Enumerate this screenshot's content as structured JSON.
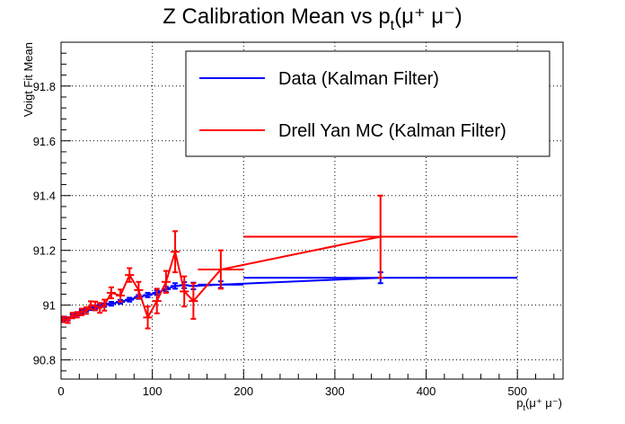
{
  "chart_data": {
    "type": "line",
    "title": {
      "main": "Z Calibration Mean vs  p",
      "sub": "t",
      "tail": "(μ⁺ μ⁻)"
    },
    "xlabel": {
      "main": "p",
      "sub": "t",
      "tail": "(μ⁺ μ⁻)"
    },
    "ylabel": "Voigt Fit Mean",
    "xlim": [
      0,
      550
    ],
    "ylim": [
      90.73,
      91.96
    ],
    "xticks": [
      0,
      100,
      200,
      300,
      400,
      500
    ],
    "xtick_labels": [
      "0",
      "100",
      "200",
      "300",
      "400",
      "500"
    ],
    "yticks": [
      90.8,
      91,
      91.2,
      91.4,
      91.6,
      91.8
    ],
    "ytick_labels": [
      "90.8",
      "91",
      "91.2",
      "91.4",
      "91.6",
      "91.8"
    ],
    "grid": true,
    "legend_position": "top-right",
    "series": [
      {
        "name": "Data (Kalman Filter)",
        "color": "#0000ff",
        "points": [
          {
            "x": 2.5,
            "y": 90.947,
            "xerr": 2.5,
            "yerr": 0.006
          },
          {
            "x": 7.5,
            "y": 90.95,
            "xerr": 2.5,
            "yerr": 0.006
          },
          {
            "x": 12.5,
            "y": 90.96,
            "xerr": 2.5,
            "yerr": 0.006
          },
          {
            "x": 17.5,
            "y": 90.968,
            "xerr": 2.5,
            "yerr": 0.006
          },
          {
            "x": 22.5,
            "y": 90.975,
            "xerr": 2.5,
            "yerr": 0.006
          },
          {
            "x": 27.5,
            "y": 90.982,
            "xerr": 2.5,
            "yerr": 0.006
          },
          {
            "x": 32.5,
            "y": 90.988,
            "xerr": 2.5,
            "yerr": 0.006
          },
          {
            "x": 37.5,
            "y": 90.993,
            "xerr": 2.5,
            "yerr": 0.006
          },
          {
            "x": 42.5,
            "y": 90.997,
            "xerr": 2.5,
            "yerr": 0.006
          },
          {
            "x": 47.5,
            "y": 91.0,
            "xerr": 2.5,
            "yerr": 0.006
          },
          {
            "x": 55,
            "y": 91.005,
            "xerr": 5,
            "yerr": 0.007
          },
          {
            "x": 65,
            "y": 91.012,
            "xerr": 5,
            "yerr": 0.007
          },
          {
            "x": 75,
            "y": 91.02,
            "xerr": 5,
            "yerr": 0.007
          },
          {
            "x": 85,
            "y": 91.03,
            "xerr": 5,
            "yerr": 0.007
          },
          {
            "x": 95,
            "y": 91.037,
            "xerr": 5,
            "yerr": 0.008
          },
          {
            "x": 105,
            "y": 91.045,
            "xerr": 5,
            "yerr": 0.008
          },
          {
            "x": 115,
            "y": 91.058,
            "xerr": 5,
            "yerr": 0.009
          },
          {
            "x": 125,
            "y": 91.07,
            "xerr": 5,
            "yerr": 0.01
          },
          {
            "x": 135,
            "y": 91.073,
            "xerr": 5,
            "yerr": 0.011
          },
          {
            "x": 145,
            "y": 91.07,
            "xerr": 5,
            "yerr": 0.012
          },
          {
            "x": 175,
            "y": 91.075,
            "xerr": 25,
            "yerr": 0.012
          },
          {
            "x": 350,
            "y": 91.1,
            "xerr": 150,
            "yerr": 0.02
          }
        ]
      },
      {
        "name": "Drell Yan MC (Kalman Filter)",
        "color": "#ff0000",
        "points": [
          {
            "x": 2.5,
            "y": 90.948,
            "xerr": 2.5,
            "yerr": 0.01
          },
          {
            "x": 7.5,
            "y": 90.945,
            "xerr": 2.5,
            "yerr": 0.01
          },
          {
            "x": 12.5,
            "y": 90.962,
            "xerr": 2.5,
            "yerr": 0.01
          },
          {
            "x": 17.5,
            "y": 90.965,
            "xerr": 2.5,
            "yerr": 0.01
          },
          {
            "x": 22.5,
            "y": 90.975,
            "xerr": 2.5,
            "yerr": 0.012
          },
          {
            "x": 27.5,
            "y": 90.98,
            "xerr": 2.5,
            "yerr": 0.012
          },
          {
            "x": 32.5,
            "y": 91.0,
            "xerr": 2.5,
            "yerr": 0.014
          },
          {
            "x": 37.5,
            "y": 90.997,
            "xerr": 2.5,
            "yerr": 0.016
          },
          {
            "x": 42.5,
            "y": 90.99,
            "xerr": 2.5,
            "yerr": 0.018
          },
          {
            "x": 47.5,
            "y": 91.0,
            "xerr": 2.5,
            "yerr": 0.02
          },
          {
            "x": 55,
            "y": 91.045,
            "xerr": 5,
            "yerr": 0.02
          },
          {
            "x": 65,
            "y": 91.035,
            "xerr": 5,
            "yerr": 0.022
          },
          {
            "x": 75,
            "y": 91.11,
            "xerr": 5,
            "yerr": 0.025
          },
          {
            "x": 85,
            "y": 91.055,
            "xerr": 5,
            "yerr": 0.03
          },
          {
            "x": 95,
            "y": 90.955,
            "xerr": 5,
            "yerr": 0.04
          },
          {
            "x": 105,
            "y": 91.015,
            "xerr": 5,
            "yerr": 0.045
          },
          {
            "x": 115,
            "y": 91.085,
            "xerr": 5,
            "yerr": 0.04
          },
          {
            "x": 125,
            "y": 91.195,
            "xerr": 5,
            "yerr": 0.075
          },
          {
            "x": 135,
            "y": 91.05,
            "xerr": 5,
            "yerr": 0.055
          },
          {
            "x": 145,
            "y": 91.015,
            "xerr": 5,
            "yerr": 0.065
          },
          {
            "x": 175,
            "y": 91.13,
            "xerr": 25,
            "yerr": 0.07
          },
          {
            "x": 350,
            "y": 91.25,
            "xerr": 150,
            "yerr": 0.15
          }
        ]
      }
    ]
  }
}
